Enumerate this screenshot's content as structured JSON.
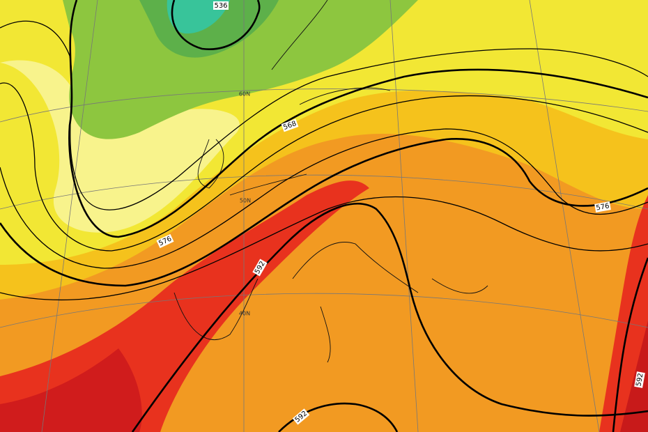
{
  "map": {
    "contour_labels": [
      "536",
      "568",
      "576",
      "576",
      "592",
      "592",
      "592"
    ],
    "latitude_labels": [
      "60N",
      "50N",
      "40N"
    ]
  }
}
